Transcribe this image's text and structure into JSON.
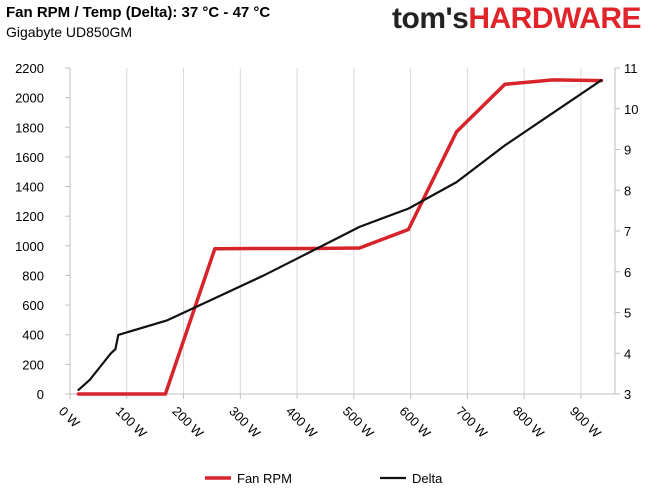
{
  "header": {
    "title": "Fan RPM / Temp (Delta): 37 °C - 47 °C",
    "subtitle": "Gigabyte UD850GM",
    "logo_part1": "tom's",
    "logo_part2": "HARDWARE"
  },
  "colors": {
    "fan_rpm": "#d7232a",
    "delta": "#111111",
    "grid": "#d9d9d9",
    "logo_accent": "#e0242a"
  },
  "chart_data": {
    "type": "line",
    "title": "Fan RPM / Temp (Delta): 37 °C - 47 °C",
    "subtitle": "Gigabyte UD850GM",
    "x_tick_labels": [
      "0 W",
      "100 W",
      "200 W",
      "300 W",
      "400 W",
      "500 W",
      "600 W",
      "700 W",
      "800 W",
      "900 W"
    ],
    "x_ticks": [
      0,
      100,
      200,
      300,
      400,
      500,
      600,
      700,
      800,
      900
    ],
    "xlim": [
      0,
      960
    ],
    "ylim_left": [
      0,
      2200
    ],
    "y_ticks_left": [
      0,
      200,
      400,
      600,
      800,
      1000,
      1200,
      1400,
      1600,
      1800,
      2000,
      2200
    ],
    "ylim_right": [
      3,
      11
    ],
    "y_ticks_right": [
      3,
      4,
      5,
      6,
      7,
      8,
      9,
      10,
      11
    ],
    "grid": "vertical",
    "legend_position": "bottom",
    "series": [
      {
        "name": "Fan RPM",
        "axis": "left",
        "x": [
          15,
          168,
          255,
          340,
          425,
          510,
          596,
          681,
          766,
          851,
          936
        ],
        "y": [
          0,
          0,
          980,
          982,
          982,
          985,
          1110,
          1770,
          2090,
          2120,
          2115
        ]
      },
      {
        "name": "Delta",
        "axis": "left_secondary_right",
        "x": [
          15,
          35,
          55,
          72,
          80,
          85,
          170,
          255,
          340,
          425,
          510,
          596,
          681,
          766,
          851,
          936
        ],
        "y": [
          3.1,
          3.35,
          3.7,
          4.0,
          4.1,
          4.45,
          4.8,
          5.35,
          5.9,
          6.5,
          7.1,
          7.55,
          8.2,
          9.1,
          9.9,
          10.7
        ]
      }
    ]
  }
}
